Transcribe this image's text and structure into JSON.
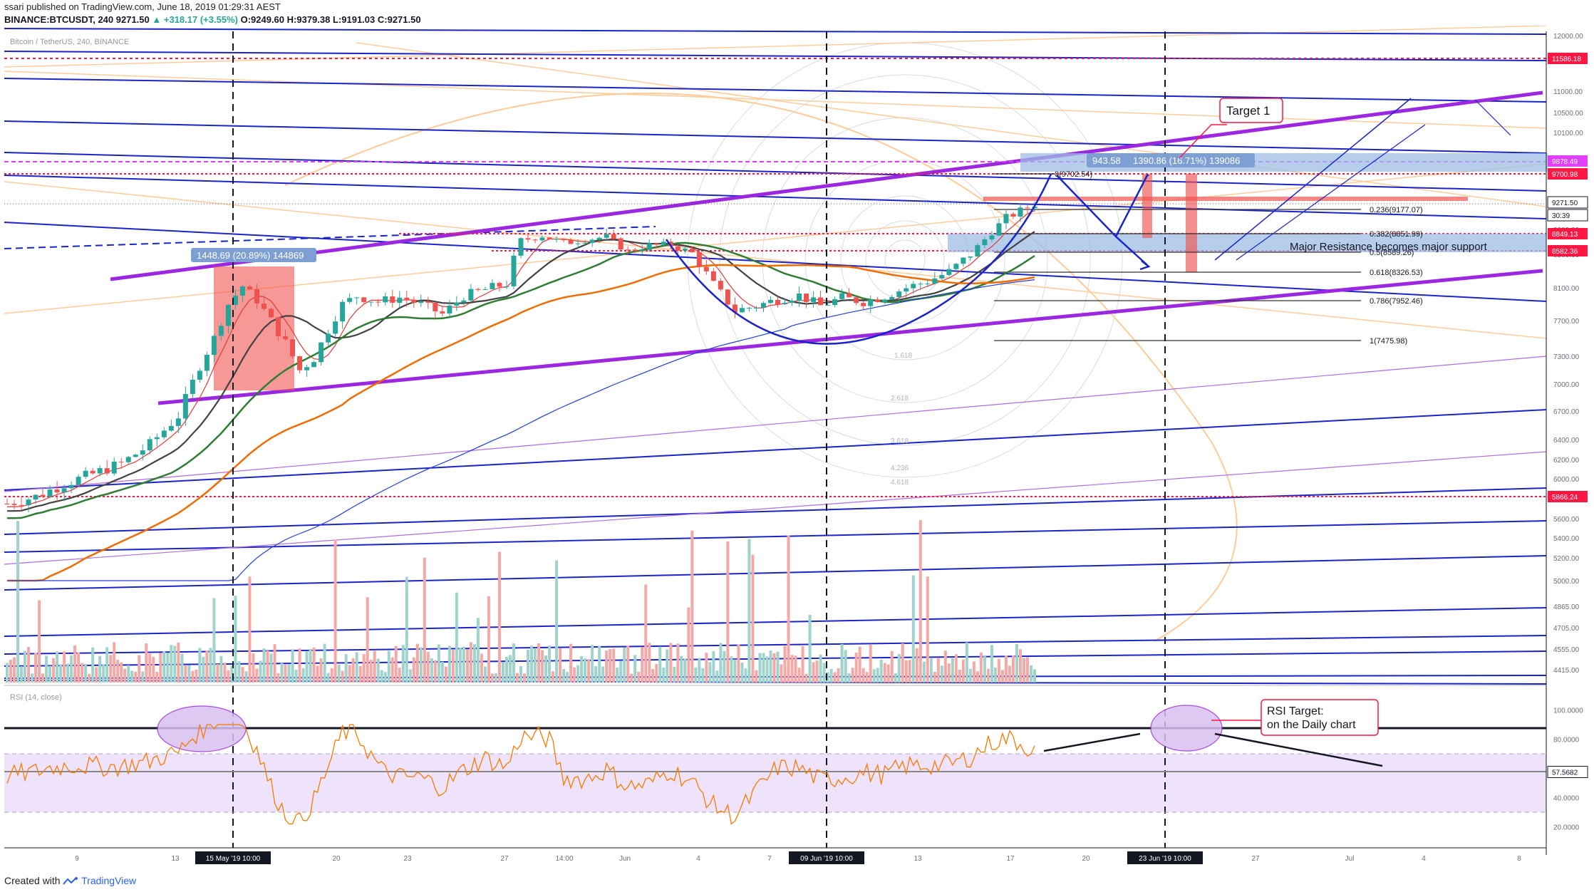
{
  "header": {
    "published": "ssari published on TradingView.com, June 18, 2019 01:29:31 AEST",
    "symbol": "BINANCE:BTCUSDT, 240",
    "last": "9271.50",
    "change": "▲ +318.17 (+3.55%)",
    "open": "O:9249.60",
    "high": "H:9379.38",
    "low": "L:9191.03",
    "close": "C:9271.50"
  },
  "footer": {
    "created_with": "Created with",
    "brand": "TradingView"
  },
  "chart_data": {
    "type": "candlestick",
    "title": "Bitcoin / TetherUS, 240, BINANCE",
    "price_axis": {
      "labels": [
        "12000.00",
        "11000.00",
        "10500.00",
        "10100.00",
        "9700.00",
        "8900.00",
        "8500.00",
        "8100.00",
        "7700.00",
        "7300.00",
        "7000.00",
        "6700.00",
        "6400.00",
        "6200.00",
        "6000.00",
        "5800.00",
        "5600.00",
        "5400.00",
        "5200.00",
        "5000.00",
        "4865.00",
        "4705.00",
        "4555.00",
        "4415.00"
      ],
      "markers": [
        {
          "value": "11586.18",
          "color": "#ff1744"
        },
        {
          "value": "9878.49",
          "color": "#e040fb"
        },
        {
          "value": "9700.98",
          "color": "#ff1744"
        },
        {
          "value": "9271.50",
          "color": "#131722"
        },
        {
          "value": "30:39",
          "color": "#131722"
        },
        {
          "value": "8849.13",
          "color": "#ff1744"
        },
        {
          "value": "8582.36",
          "color": "#ff1744"
        },
        {
          "value": "5866.24",
          "color": "#ff1744"
        }
      ]
    },
    "rsi": {
      "title": "RSI (14, close)",
      "axis_labels": [
        "100.0000",
        "80.0000",
        "60.0000",
        "40.0000",
        "20.0000"
      ],
      "current": "57.5682",
      "upper_band": 70,
      "lower_band": 30,
      "target_line": 88
    },
    "time_axis": {
      "labels": [
        "9",
        "13",
        "20",
        "23",
        "27",
        "14:00",
        "Jun",
        "4",
        "7",
        "13",
        "17",
        "20",
        "27",
        "Jul",
        "4",
        "8"
      ],
      "highlights": [
        "15 May '19   10:00",
        "09 Jun '19   10:00",
        "23 Jun '19   10:00"
      ]
    },
    "fibonacci": [
      {
        "level": "0(9702.54)",
        "price": 9702.54
      },
      {
        "level": "0.236(9177.07)",
        "price": 9177.07
      },
      {
        "level": "0.382(8851.99)",
        "price": 8851.99
      },
      {
        "level": "0.5(8589.26)",
        "price": 8589.26
      },
      {
        "level": "0.618(8326.53)",
        "price": 8326.53
      },
      {
        "level": "0.786(7952.46)",
        "price": 7952.46
      },
      {
        "level": "1(7475.98)",
        "price": 7475.98
      }
    ],
    "fib_circle_labels": [
      "1.618",
      "2.618",
      "3.618",
      "4.236",
      "4.618"
    ],
    "annotations": {
      "target1": "Target 1",
      "measure_left": "1448.69 (20.89%) 144869",
      "measure_right_a": "943.58",
      "measure_right_b": "1390.86 (16.71%) 139086",
      "resistance": "Major Resistance becomes major support",
      "rsi_target_line1": "RSI Target:",
      "rsi_target_line2": "on the Daily chart"
    },
    "colors": {
      "channel_purple": "#9c27e0",
      "trend_blue": "#1a24c8",
      "level_red": "#ff1744",
      "candle_up": "#26a69a",
      "candle_down": "#ef5350",
      "rsi_line": "#f57c00"
    },
    "price_path": [
      [
        0,
        5750
      ],
      [
        4,
        5820
      ],
      [
        8,
        5950
      ],
      [
        12,
        6050
      ],
      [
        16,
        6160
      ],
      [
        20,
        6350
      ],
      [
        24,
        6650
      ],
      [
        27,
        7200
      ],
      [
        29,
        7500
      ],
      [
        31,
        7900
      ],
      [
        33,
        8120
      ],
      [
        35,
        7950
      ],
      [
        37,
        7700
      ],
      [
        39,
        7450
      ],
      [
        41,
        7150
      ],
      [
        43,
        7280
      ],
      [
        45,
        7600
      ],
      [
        47,
        7900
      ],
      [
        49,
        8000
      ],
      [
        52,
        7930
      ],
      [
        55,
        7980
      ],
      [
        58,
        7900
      ],
      [
        61,
        7780
      ],
      [
        64,
        8000
      ],
      [
        67,
        8080
      ],
      [
        70,
        8150
      ],
      [
        72,
        8720
      ],
      [
        75,
        8800
      ],
      [
        78,
        8680
      ],
      [
        81,
        8740
      ],
      [
        84,
        8780
      ],
      [
        87,
        8550
      ],
      [
        90,
        8640
      ],
      [
        93,
        8650
      ],
      [
        96,
        8520
      ],
      [
        99,
        8140
      ],
      [
        102,
        7820
      ],
      [
        105,
        7880
      ],
      [
        108,
        7960
      ],
      [
        111,
        8010
      ],
      [
        114,
        7880
      ],
      [
        117,
        7980
      ],
      [
        120,
        7930
      ],
      [
        123,
        8000
      ],
      [
        126,
        8100
      ],
      [
        129,
        8180
      ],
      [
        132,
        8290
      ],
      [
        135,
        8500
      ],
      [
        138,
        8860
      ],
      [
        140,
        9070
      ],
      [
        142,
        9170
      ],
      [
        144,
        9271
      ]
    ]
  }
}
